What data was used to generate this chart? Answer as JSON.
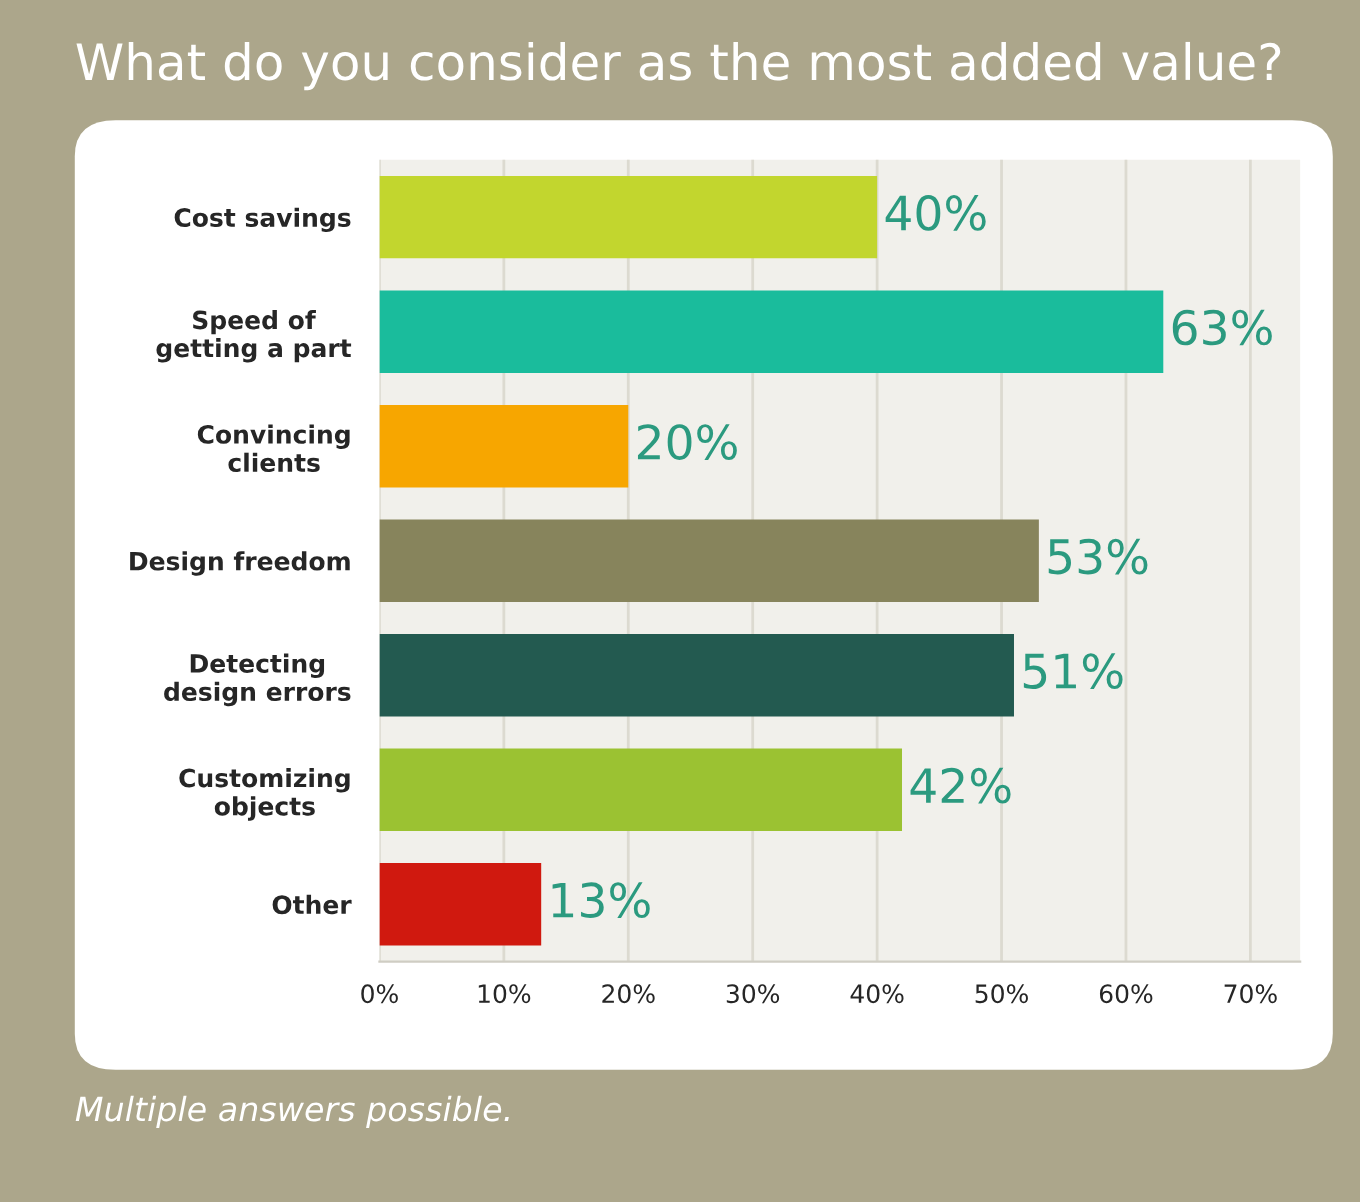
{
  "chart_data": {
    "type": "bar",
    "orientation": "horizontal",
    "title": "What do you consider as the most added value?",
    "categories": [
      "Cost savings",
      "Speed of\ngetting a part",
      "Convincing\nclients",
      "Design freedom",
      "Detecting\ndesign errors",
      "Customizing\nobjects",
      "Other"
    ],
    "values": [
      40,
      63,
      20,
      53,
      51,
      42,
      13
    ],
    "colors": [
      "#c2d62e",
      "#1abc9c",
      "#f7a600",
      "#87845c",
      "#235a50",
      "#9bc232",
      "#d0190f"
    ],
    "value_labels": [
      "40%",
      "63%",
      "20%",
      "53%",
      "51%",
      "42%",
      "13%"
    ],
    "xlim": [
      0,
      74
    ],
    "xticks": [
      {
        "value": 0,
        "label": "0%"
      },
      {
        "value": 10,
        "label": "10%"
      },
      {
        "value": 20,
        "label": "20%"
      },
      {
        "value": 30,
        "label": "30%"
      },
      {
        "value": 40,
        "label": "40%"
      },
      {
        "value": 50,
        "label": "50%"
      },
      {
        "value": 60,
        "label": "60%"
      },
      {
        "value": 70,
        "label": "70%"
      }
    ],
    "grid": "x",
    "annotations": [
      "Multiple answers possible."
    ]
  }
}
